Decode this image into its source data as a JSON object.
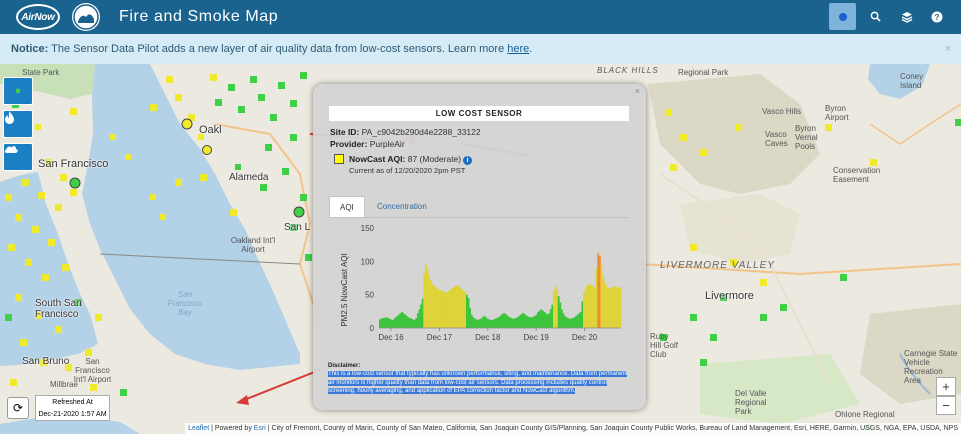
{
  "header": {
    "logo_text": "AirNow",
    "title": "Fire and Smoke Map",
    "buttons": [
      {
        "icon": "dot-icon"
      },
      {
        "icon": "search-icon",
        "glyph": "🔍"
      },
      {
        "icon": "layers-icon",
        "glyph": "≡"
      },
      {
        "icon": "help-icon",
        "glyph": "?"
      }
    ]
  },
  "notice": {
    "label": "Notice:",
    "text": " The Sensor Data Pilot adds a new layer of air quality data from low-cost sensors. Learn more ",
    "link": "here",
    "suffix": ".",
    "close": "×"
  },
  "map": {
    "labels": {
      "state_park": "State Park",
      "black_hills": "BLACK HILLS",
      "regional_park": "Regional Park",
      "vasco_hills": "Vasco Hills",
      "byron_airport": "Byron Airport",
      "vasco_caves": "Vasco Caves",
      "byron_vernal": "Byron Vernal Pools",
      "conservation": "Conservation Easement",
      "coney": "Coney Island",
      "oakland": "Oakl",
      "san_francisco": "San Francisco",
      "alameda": "Alameda",
      "san_leandro": "San L",
      "oakland_airport": "Oakland Int'l Airport",
      "bay": "San Francisco Bay",
      "south_sf": "South San Francisco",
      "san_bruno": "San Bruno",
      "sfo": "San Francisco Int'l Airport",
      "millbrae": "Millbrae",
      "livermore_valley": "LIVERMORE VALLEY",
      "livermore": "Livermore",
      "del_valle": "Del Valle Regional Park",
      "carnegie": "Carnegie State Vehicle Recreation Area",
      "ohlone": "Ohlone Regional",
      "ruby_hill": "Ruby Hill Golf Club"
    },
    "controls": [
      {
        "icon": "sensor-dot-icon",
        "glyph": "●"
      },
      {
        "icon": "fire-icon",
        "glyph": "🔥"
      },
      {
        "icon": "smoke-cloud-icon",
        "glyph": "☁"
      }
    ],
    "refresh": {
      "glyph": "⟳",
      "line1": "Refreshed At",
      "line2": "Dec-21-2020 1:57 AM"
    },
    "zoom_in": "+",
    "zoom_out": "−",
    "attribution": {
      "leaflet": "Leaflet",
      "powered": " | Powered by ",
      "esri": "Esri",
      "rest": " | City of Fremont, County of Marin, County of San Mateo, California, San Joaquin County GIS/Planning, San Joaquin County Public Works, Bureau of Land Management, Esri, HERE, Garmin, USGS, NGA, EPA, USDA, NPS"
    }
  },
  "popup": {
    "close": "×",
    "title": "LOW COST SENSOR",
    "site_label": "Site ID:",
    "site_id": " PA_c9042b290d4e2288_33122",
    "provider_label": "Provider:",
    "provider": " PurpleAir",
    "aqi_label": "NowCast AQI:",
    "aqi_value": " 87 (Moderate)",
    "aqi_color": "#ffff00",
    "current": "Current as of 12/20/2020 2pm PST",
    "tabs": [
      {
        "label": "AQI",
        "active": true
      },
      {
        "label": "Concentration",
        "active": false
      }
    ],
    "disclaimer_label": "Disclaimer:",
    "disclaimer": "This is a low-cost sensor that typically has unknown performance, siting, and maintenance. Data from permanent air monitors is higher quality than data from low-cost air sensors. Data processing includes quality control screening, hourly averaging, and application of EPA correction factor and NowCast algorithm."
  },
  "chart_data": {
    "type": "bar",
    "ylabel": "PM2.5 NowCast AQI",
    "ylim": [
      0,
      150
    ],
    "yticks": [
      0,
      50,
      100,
      150
    ],
    "xticks": [
      "Dec 16",
      "Dec 17",
      "Dec 18",
      "Dec 19",
      "Dec 20"
    ],
    "grid": true,
    "colors": {
      "good": "#3cc43c",
      "moderate": "#ded43a",
      "usg": "#f08c2e"
    },
    "values": [
      13,
      14,
      15,
      15,
      16,
      15,
      14,
      13,
      12,
      14,
      16,
      18,
      20,
      22,
      24,
      22,
      20,
      18,
      16,
      15,
      14,
      13,
      12,
      15,
      22,
      28,
      35,
      44,
      82,
      95,
      90,
      80,
      72,
      66,
      64,
      62,
      60,
      58,
      57,
      56,
      55,
      54,
      54,
      55,
      56,
      58,
      60,
      62,
      63,
      64,
      62,
      60,
      58,
      56,
      54,
      50,
      45,
      30,
      20,
      16,
      14,
      13,
      12,
      13,
      14,
      16,
      18,
      16,
      14,
      13,
      12,
      12,
      13,
      14,
      15,
      16,
      18,
      20,
      22,
      22,
      20,
      18,
      16,
      15,
      14,
      14,
      15,
      16,
      18,
      20,
      22,
      22,
      20,
      18,
      17,
      16,
      16,
      17,
      18,
      20,
      24,
      26,
      28,
      26,
      24,
      22,
      20,
      22,
      28,
      35,
      55,
      62,
      58,
      48,
      38,
      28,
      22,
      18,
      16,
      15,
      14,
      14,
      15,
      16,
      18,
      20,
      22,
      24,
      40,
      52,
      58,
      63,
      65,
      66,
      64,
      62,
      60,
      90,
      112,
      108,
      95,
      80,
      70,
      64,
      60,
      58,
      60,
      62,
      63,
      62,
      61,
      60,
      61
    ]
  }
}
